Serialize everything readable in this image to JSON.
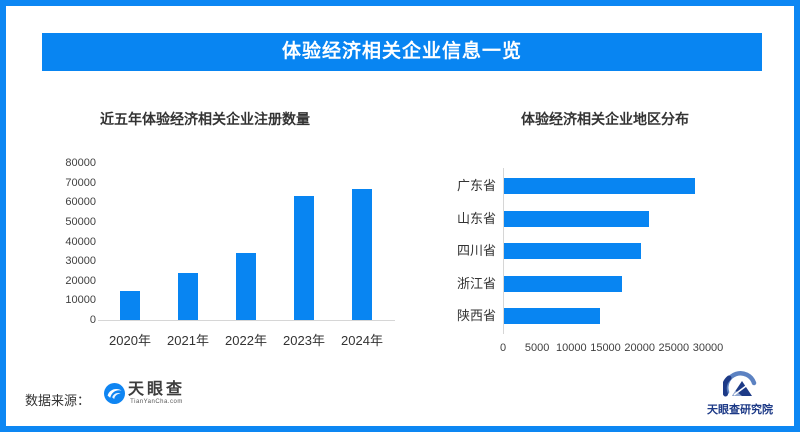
{
  "header": {
    "title": "体验经济相关企业信息一览",
    "bg_color": "#0885f2"
  },
  "colors": {
    "accent_blue": "#0885f2",
    "border_blue": "#0d87f3",
    "axis_gray": "#d6d6d6",
    "logo_navy": "#1d3a87"
  },
  "footer": {
    "source_label": "数据来源：",
    "tyc_logo": {
      "name": "天眼查",
      "sub": "TianYanCha.com"
    },
    "institute": {
      "name": "天眼查研究院"
    }
  },
  "chart_data": [
    {
      "type": "bar",
      "orientation": "vertical",
      "title": "近五年体验经济相关企业注册数量",
      "categories": [
        "2020年",
        "2021年",
        "2022年",
        "2023年",
        "2024年"
      ],
      "values": [
        15000,
        24000,
        34000,
        63000,
        66500
      ],
      "ylabel": "",
      "xlabel": "",
      "ylim": [
        0,
        80000
      ],
      "yticks": [
        0,
        10000,
        20000,
        30000,
        40000,
        50000,
        60000,
        70000,
        80000
      ],
      "bar_color": "#0885f2",
      "grid": false,
      "legend": "none"
    },
    {
      "type": "bar",
      "orientation": "horizontal",
      "title": "体验经济相关企业地区分布",
      "categories": [
        "广东省",
        "山东省",
        "四川省",
        "浙江省",
        "陕西省"
      ],
      "values": [
        28000,
        21200,
        20000,
        17300,
        14000
      ],
      "ylabel": "",
      "xlabel": "",
      "xlim": [
        0,
        32500
      ],
      "xticks": [
        0,
        5000,
        10000,
        15000,
        20000,
        25000,
        30000
      ],
      "bar_color": "#0885f2",
      "grid": false,
      "legend": "none"
    }
  ]
}
